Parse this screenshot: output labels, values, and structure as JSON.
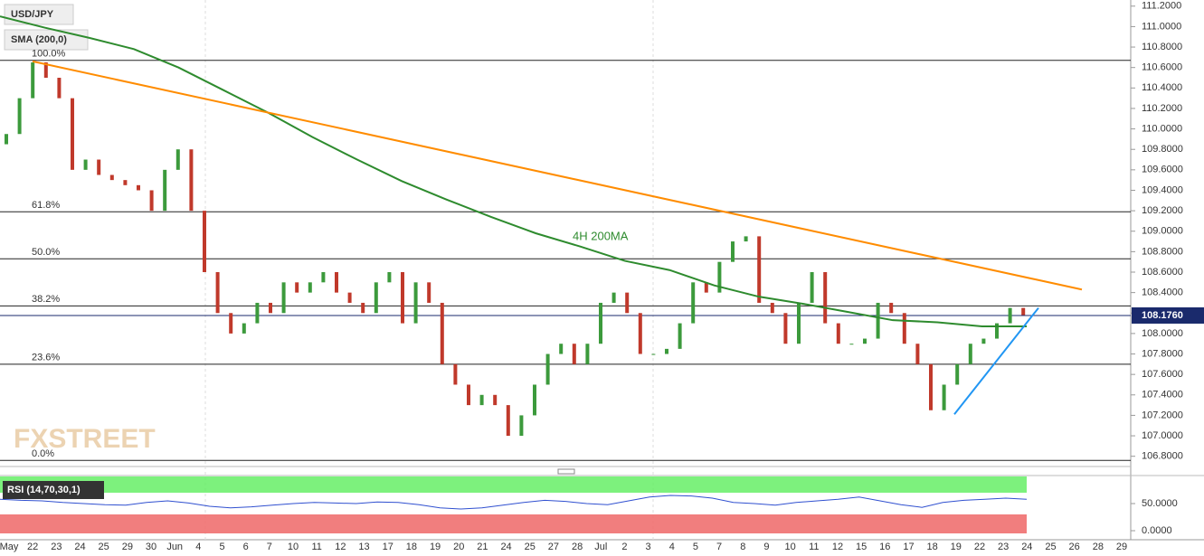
{
  "chart_data": {
    "type": "candlestick",
    "title": "USD/JPY",
    "annotation": "4H 200MA",
    "watermark": "FXSTREET",
    "x_labels": [
      "May",
      "22",
      "23",
      "24",
      "25",
      "29",
      "30",
      "Jun",
      "4",
      "5",
      "6",
      "7",
      "10",
      "11",
      "12",
      "13",
      "17",
      "18",
      "19",
      "20",
      "21",
      "24",
      "25",
      "27",
      "28",
      "Jul",
      "2",
      "3",
      "4",
      "5",
      "7",
      "8",
      "9",
      "10",
      "11",
      "12",
      "15",
      "16",
      "17",
      "18",
      "19",
      "22",
      "23",
      "24",
      "25",
      "26",
      "28",
      "29"
    ],
    "up_color": "#3c9a3c",
    "down_color": "#c0392b",
    "open": [
      109.85,
      109.95,
      110.3,
      110.65,
      110.5,
      110.3,
      109.6,
      109.7,
      109.55,
      109.5,
      109.45,
      109.4,
      109.2,
      109.6,
      109.8,
      109.2,
      108.6,
      108.2,
      108.0,
      108.1,
      108.3,
      108.2,
      108.5,
      108.4,
      108.5,
      108.6,
      108.4,
      108.3,
      108.2,
      108.5,
      108.6,
      108.1,
      108.5,
      108.3,
      107.7,
      107.5,
      107.3,
      107.4,
      107.3,
      107.0,
      107.2,
      107.5,
      107.8,
      107.9,
      107.7,
      107.9,
      108.3,
      108.4,
      108.2,
      107.8,
      107.8,
      107.85,
      108.1,
      108.5,
      108.4,
      108.7,
      108.9,
      108.95,
      108.3,
      108.2,
      107.9,
      108.3,
      108.6,
      108.1,
      107.9,
      107.9,
      107.95,
      108.3,
      108.2,
      107.9,
      107.7,
      107.25,
      107.5,
      107.7,
      107.9,
      107.95,
      108.1,
      108.25
    ],
    "close": [
      109.95,
      110.3,
      110.65,
      110.5,
      110.3,
      109.6,
      109.7,
      109.55,
      109.5,
      109.45,
      109.4,
      109.2,
      109.6,
      109.8,
      109.2,
      108.6,
      108.2,
      108.0,
      108.1,
      108.3,
      108.2,
      108.5,
      108.4,
      108.5,
      108.6,
      108.4,
      108.3,
      108.2,
      108.5,
      108.6,
      108.1,
      108.5,
      108.3,
      107.7,
      107.5,
      107.3,
      107.4,
      107.3,
      107.0,
      107.2,
      107.5,
      107.8,
      107.9,
      107.7,
      107.9,
      108.3,
      108.4,
      108.2,
      107.8,
      107.8,
      107.85,
      108.1,
      108.5,
      108.4,
      108.7,
      108.9,
      108.95,
      108.3,
      108.2,
      107.9,
      108.3,
      108.6,
      108.1,
      107.9,
      107.9,
      107.95,
      108.3,
      108.2,
      107.9,
      107.7,
      107.25,
      107.5,
      107.7,
      107.9,
      107.95,
      108.1,
      108.25,
      108.18
    ],
    "ylim": [
      106.7,
      111.26
    ],
    "yticks": [
      {
        "value": 106.8,
        "label": "106.8000"
      },
      {
        "value": 107.0,
        "label": "107.0000"
      },
      {
        "value": 107.2,
        "label": "107.2000"
      },
      {
        "value": 107.4,
        "label": "107.4000"
      },
      {
        "value": 107.6,
        "label": "107.6000"
      },
      {
        "value": 107.8,
        "label": "107.8000"
      },
      {
        "value": 108.0,
        "label": "108.0000"
      },
      {
        "value": 108.2,
        "label": "108.2000"
      },
      {
        "value": 108.4,
        "label": "108.4000"
      },
      {
        "value": 108.6,
        "label": "108.6000"
      },
      {
        "value": 108.8,
        "label": "108.8000"
      },
      {
        "value": 109.0,
        "label": "109.0000"
      },
      {
        "value": 109.2,
        "label": "109.2000"
      },
      {
        "value": 109.4,
        "label": "109.4000"
      },
      {
        "value": 109.6,
        "label": "109.6000"
      },
      {
        "value": 109.8,
        "label": "109.8000"
      },
      {
        "value": 110.0,
        "label": "110.0000"
      },
      {
        "value": 110.2,
        "label": "110.2000"
      },
      {
        "value": 110.4,
        "label": "110.4000"
      },
      {
        "value": 110.6,
        "label": "110.6000"
      },
      {
        "value": 110.8,
        "label": "110.8000"
      },
      {
        "value": 111.0,
        "label": "111.0000"
      },
      {
        "value": 111.2,
        "label": "111.2000"
      }
    ],
    "sma": {
      "name": "SMA (200,0)",
      "color": "#2e8b2e",
      "values": [
        111.1,
        110.99,
        110.89,
        110.78,
        110.6,
        110.38,
        110.16,
        109.92,
        109.7,
        109.49,
        109.31,
        109.14,
        108.98,
        108.85,
        108.71,
        108.62,
        108.47,
        108.36,
        108.29,
        108.21,
        108.13,
        108.11,
        108.07,
        108.07
      ]
    },
    "fib_levels": [
      {
        "label": "100.0%",
        "value": 110.67
      },
      {
        "label": "61.8%",
        "value": 109.19
      },
      {
        "label": "50.0%",
        "value": 108.73
      },
      {
        "label": "38.2%",
        "value": 108.27
      },
      {
        "label": "23.6%",
        "value": 107.7
      },
      {
        "label": "0.0%",
        "value": 106.76
      }
    ],
    "trendlines": [
      {
        "color": "#ff8c00",
        "values": [
          110.66,
          108.43
        ]
      },
      {
        "color": "#2196f3",
        "values": [
          107.21,
          108.25
        ]
      }
    ],
    "last_price": {
      "value": 108.176,
      "label": "108.1760"
    },
    "rsi": {
      "name": "RSI (14,70,30,1)",
      "color": "#3050d0",
      "values": [
        58,
        56,
        55,
        52,
        50,
        48,
        47,
        52,
        55,
        51,
        45,
        42,
        44,
        47,
        50,
        52,
        51,
        50,
        53,
        52,
        48,
        42,
        40,
        42,
        47,
        52,
        56,
        54,
        50,
        48,
        55,
        62,
        65,
        64,
        60,
        52,
        50,
        47,
        52,
        55,
        58,
        62,
        55,
        48,
        43,
        52,
        56,
        58,
        60,
        58
      ],
      "ylim": [
        -5,
        100
      ],
      "overbought": 70,
      "oversold": 30,
      "yticks": [
        {
          "value": 50,
          "label": "50.0000"
        },
        {
          "value": 0,
          "label": "0.0000"
        }
      ]
    }
  }
}
